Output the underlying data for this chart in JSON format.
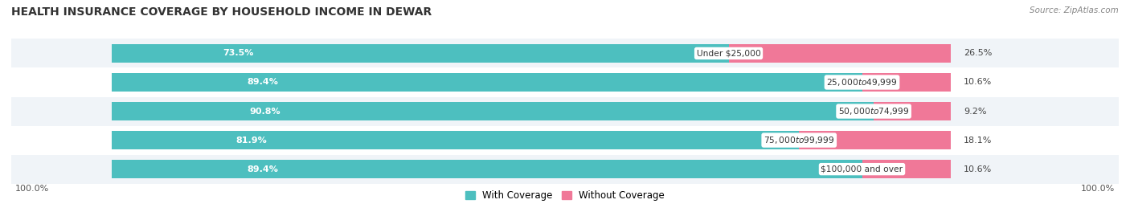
{
  "title": "HEALTH INSURANCE COVERAGE BY HOUSEHOLD INCOME IN DEWAR",
  "source": "Source: ZipAtlas.com",
  "categories": [
    "Under $25,000",
    "$25,000 to $49,999",
    "$50,000 to $74,999",
    "$75,000 to $99,999",
    "$100,000 and over"
  ],
  "with_coverage": [
    73.5,
    89.4,
    90.8,
    81.9,
    89.4
  ],
  "without_coverage": [
    26.5,
    10.6,
    9.2,
    18.1,
    10.6
  ],
  "coverage_color": "#4DBFBF",
  "no_coverage_color": "#F07898",
  "row_bg_even": "#F0F4F8",
  "row_bg_odd": "#FFFFFF",
  "title_fontsize": 10,
  "label_fontsize": 8,
  "tick_fontsize": 8,
  "legend_fontsize": 8.5,
  "bar_height": 0.62,
  "x_left_label": "100.0%",
  "x_right_label": "100.0%"
}
